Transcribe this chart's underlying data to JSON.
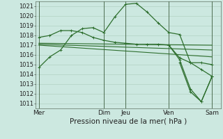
{
  "bg_color": "#cce8e0",
  "grid_color": "#aaccbb",
  "line_color": "#2d6e2d",
  "ylim": [
    1010.5,
    1021.5
  ],
  "yticks": [
    1011,
    1012,
    1013,
    1014,
    1015,
    1016,
    1017,
    1018,
    1019,
    1020,
    1021
  ],
  "xlabel": "Pression niveau de la mer( hPa )",
  "xlabel_fontsize": 7.5,
  "day_labels": [
    "Mer",
    "Dim",
    "Jeu",
    "Ven",
    "Sam"
  ],
  "day_positions": [
    0,
    6,
    8,
    12,
    16
  ],
  "xlim": [
    -0.3,
    16.8
  ],
  "series": [
    {
      "x": [
        0,
        1,
        2,
        3,
        4,
        5,
        6,
        7,
        8,
        9,
        10,
        11,
        12,
        13,
        14,
        15,
        16
      ],
      "y": [
        1014.7,
        1015.8,
        1016.5,
        1018.0,
        1018.7,
        1018.8,
        1018.3,
        1019.9,
        1021.2,
        1021.3,
        1020.4,
        1019.3,
        1018.3,
        1018.1,
        1015.2,
        1015.2,
        1015.0
      ],
      "marker": true,
      "lw": 0.9
    },
    {
      "x": [
        0,
        1,
        2,
        3,
        4,
        5,
        6,
        7,
        8,
        9,
        10,
        11,
        12,
        13,
        14,
        15,
        16
      ],
      "y": [
        1017.8,
        1018.0,
        1018.5,
        1018.5,
        1018.3,
        1017.8,
        1017.5,
        1017.3,
        1017.2,
        1017.1,
        1017.1,
        1017.1,
        1017.0,
        1015.7,
        1015.2,
        1014.5,
        1013.8
      ],
      "marker": true,
      "lw": 0.9
    },
    {
      "x": [
        0,
        16
      ],
      "y": [
        1017.2,
        1017.0
      ],
      "marker": false,
      "lw": 0.8
    },
    {
      "x": [
        0,
        16
      ],
      "y": [
        1017.1,
        1016.5
      ],
      "marker": false,
      "lw": 0.8
    },
    {
      "x": [
        0,
        16
      ],
      "y": [
        1017.0,
        1015.8
      ],
      "marker": false,
      "lw": 0.8
    },
    {
      "x": [
        12,
        13,
        14,
        15,
        16
      ],
      "y": [
        1017.0,
        1015.5,
        1012.5,
        1011.2,
        1013.8
      ],
      "marker": true,
      "lw": 0.9
    },
    {
      "x": [
        13,
        14,
        15,
        16
      ],
      "y": [
        1015.2,
        1012.2,
        1011.2,
        1013.8
      ],
      "marker": true,
      "lw": 0.9
    }
  ],
  "tick_fontsize": 6.0,
  "day_fontsize": 6.5
}
